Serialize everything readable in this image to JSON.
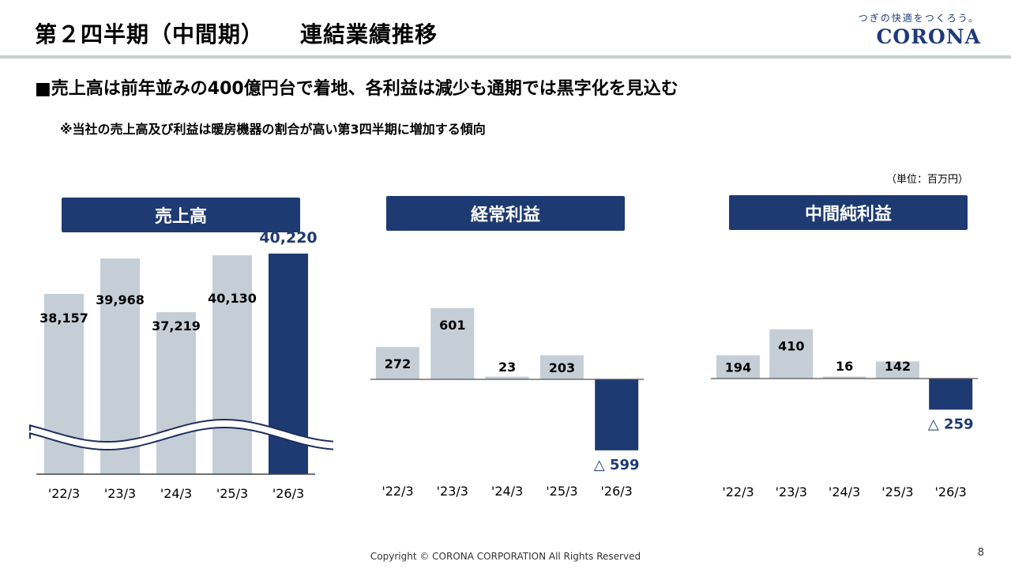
{
  "header": {
    "title": "第２四半期（中間期）",
    "subtitle": "連結業績推移",
    "logo_tagline": "つぎの快適をつくろう。",
    "logo": "CORONA"
  },
  "headline": "■売上高は前年並みの400億円台で着地、各利益は減少も通期では黒字化を見込む",
  "note": "※当社の売上高及び利益は暖房機器の割合が高い第3四半期に増加する傾向",
  "unit": "（単位：百万円）",
  "colors": {
    "navy": "#1e3a72",
    "gray": "#c5ced6",
    "highlight_text": "#1e3a72"
  },
  "chart_data": [
    {
      "type": "bar",
      "title": "売上高",
      "categories": [
        "'22/3",
        "'23/3",
        "'24/3",
        "'25/3",
        "'26/3"
      ],
      "values": [
        38157,
        39968,
        37219,
        40130,
        40220
      ],
      "labels": [
        "38,157",
        "39,968",
        "37,219",
        "40,130",
        "40,220"
      ],
      "axis_break": true,
      "highlight_last": true
    },
    {
      "type": "bar",
      "title": "経常利益",
      "categories": [
        "'22/3",
        "'23/3",
        "'24/3",
        "'25/3",
        "'26/3"
      ],
      "values": [
        272,
        601,
        23,
        203,
        -599
      ],
      "labels": [
        "272",
        "601",
        "23",
        "203",
        "△ 599"
      ],
      "highlight_last": true
    },
    {
      "type": "bar",
      "title": "中間純利益",
      "categories": [
        "'22/3",
        "'23/3",
        "'24/3",
        "'25/3",
        "'26/3"
      ],
      "values": [
        194,
        410,
        16,
        142,
        -259
      ],
      "labels": [
        "194",
        "410",
        "16",
        "142",
        "△ 259"
      ],
      "highlight_last": true
    }
  ],
  "footer": "Copyright © CORONA CORPORATION All Rights Reserved",
  "page_number": "8"
}
